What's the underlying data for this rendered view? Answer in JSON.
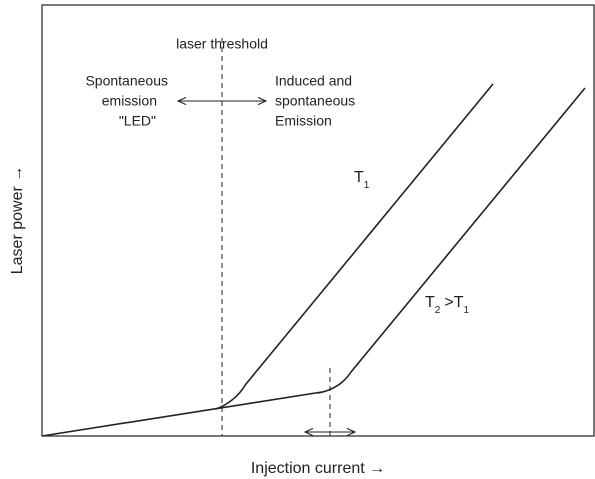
{
  "threshold_label": "laser threshold",
  "left_region": [
    "Spontaneous",
    "emission",
    "\"LED\""
  ],
  "right_region": [
    "Induced and",
    "spontaneous",
    "Emission"
  ],
  "curves": [
    {
      "label": "T",
      "subscript": "1"
    },
    {
      "label": "T",
      "subscript": "2",
      "relation": ">T",
      "relation_subscript": "1"
    }
  ],
  "y_axis_label": "Laser power →",
  "x_axis_label": "Injection current →"
}
